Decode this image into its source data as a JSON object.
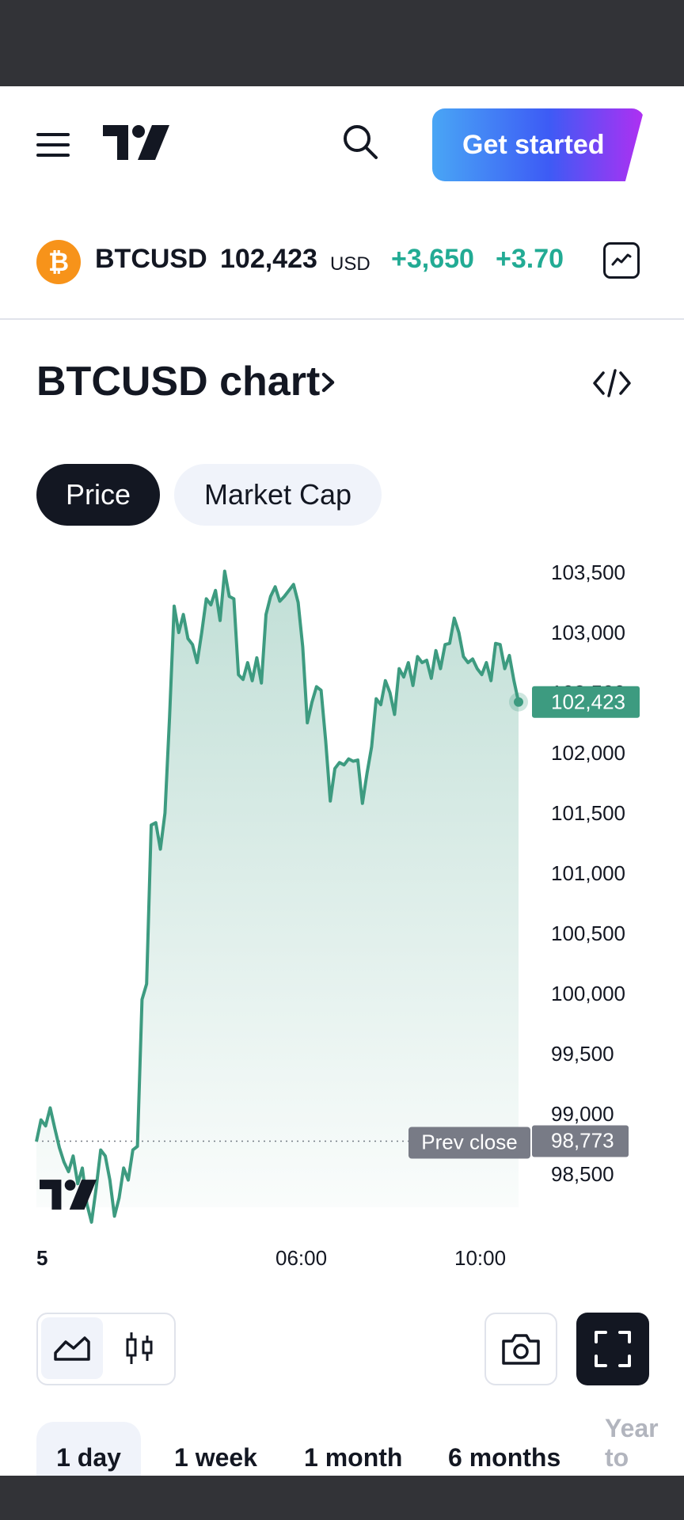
{
  "header": {
    "cta_label": "Get started"
  },
  "ticker": {
    "icon_glyph": "₿",
    "symbol": "BTCUSD",
    "price": "102,423",
    "currency": "USD",
    "change": "+3,650",
    "change_percent": "+3.70",
    "accent_color": "#22ab94",
    "icon_color": "#f7931a"
  },
  "section": {
    "title": "BTCUSD chart",
    "title_suffix": "›"
  },
  "chart_tabs": [
    {
      "label": "Price",
      "selected": true
    },
    {
      "label": "Market Cap",
      "selected": false
    }
  ],
  "chart_data": {
    "type": "area",
    "y_ticks": [
      "103,500",
      "103,000",
      "102,500",
      "102,000",
      "101,500",
      "101,000",
      "100,500",
      "100,000",
      "99,500",
      "99,000",
      "98,500"
    ],
    "ylim": [
      98500,
      103500
    ],
    "x_ticks": [
      "5",
      "06:00",
      "10:00"
    ],
    "last_price_label": "102,423",
    "last_price": 102423,
    "prev_close_label": "Prev close",
    "prev_close_value_label": "98,773",
    "prev_close": 98773,
    "line_color": "#3d9b80",
    "series": [
      {
        "values": [
          98770,
          98950,
          98900,
          99050,
          98880,
          98720,
          98600,
          98520,
          98650,
          98420,
          98550,
          98250,
          98100,
          98380,
          98700,
          98650,
          98450,
          98150,
          98300,
          98550,
          98450,
          98700,
          98730,
          99950,
          100080,
          101400,
          101420,
          101200,
          101500,
          102300,
          103220,
          103000,
          103150,
          102950,
          102900,
          102750,
          103000,
          103280,
          103230,
          103350,
          103100,
          103510,
          103300,
          103280,
          102650,
          102610,
          102750,
          102600,
          102790,
          102580,
          103150,
          103300,
          103380,
          103260,
          103300,
          103350,
          103400,
          103250,
          102880,
          102250,
          102420,
          102550,
          102520,
          102100,
          101600,
          101870,
          101920,
          101900,
          101950,
          101930,
          101940,
          101580,
          101830,
          102050,
          102450,
          102400,
          102600,
          102500,
          102320,
          102700,
          102630,
          102750,
          102560,
          102800,
          102750,
          102770,
          102620,
          102850,
          102700,
          102900,
          102910,
          103120,
          103000,
          102800,
          102750,
          102780,
          102700,
          102650,
          102750,
          102600,
          102910,
          102900,
          102700,
          102810,
          102600,
          102423
        ]
      }
    ]
  }
}
